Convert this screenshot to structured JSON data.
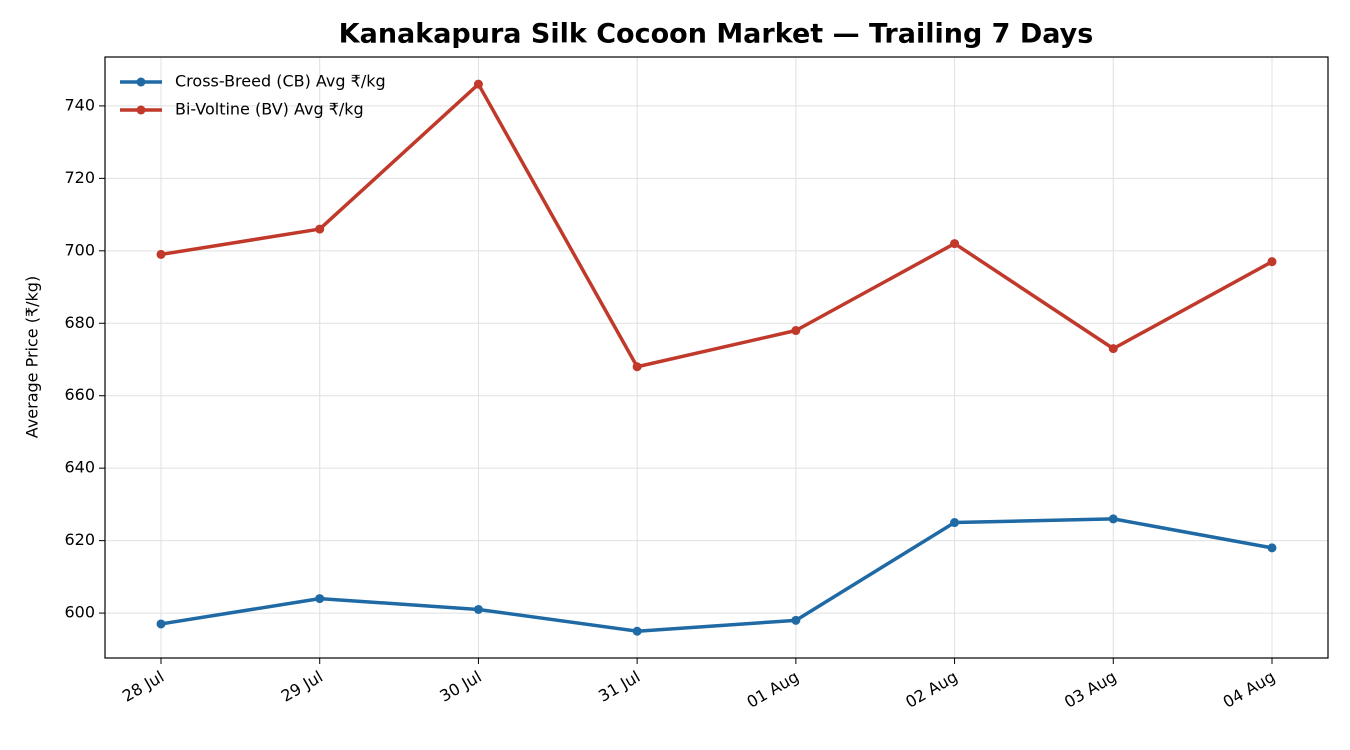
{
  "chart_data": {
    "type": "line",
    "title": "Kanakapura Silk Cocoon Market — Trailing 7 Days",
    "ylabel": "Average Price (₹/kg)",
    "categories": [
      "28 Jul",
      "29 Jul",
      "30 Jul",
      "31 Jul",
      "01 Aug",
      "02 Aug",
      "03 Aug",
      "04 Aug"
    ],
    "series": [
      {
        "name": "Cross-Breed (CB) Avg ₹/kg",
        "color": "#1f6aa5",
        "values": [
          597,
          604,
          601,
          595,
          598,
          625,
          626,
          618
        ]
      },
      {
        "name": "Bi-Voltine (BV) Avg ₹/kg",
        "color": "#c0392b",
        "values": [
          699,
          706,
          746,
          668,
          678,
          702,
          673,
          697
        ]
      }
    ],
    "ylim": [
      587.6,
      753.5
    ],
    "yticks": [
      600,
      620,
      640,
      660,
      680,
      700,
      720,
      740
    ],
    "grid": true,
    "legend": "upper-left"
  }
}
